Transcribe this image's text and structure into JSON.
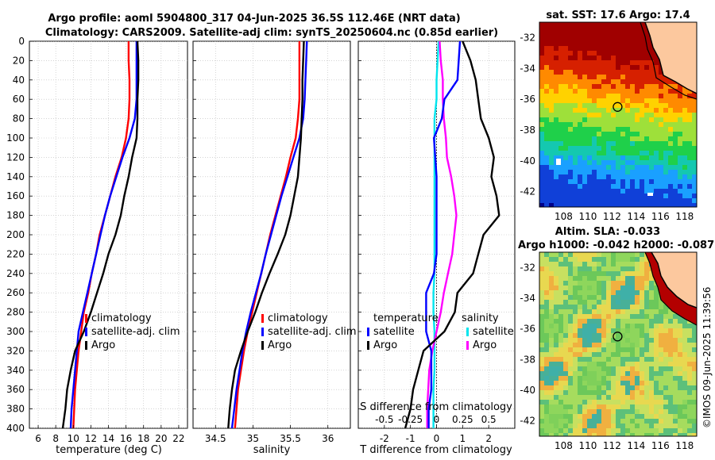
{
  "title": {
    "line1": "Argo profile: aoml 5904800_317 04-Jun-2025 36.5S 112.46E (NRT data)",
    "line2": "Climatology: CARS2009. Satellite-adj clim: synTS_20250604.nc (0.85d earlier)"
  },
  "watermark": "©IMOS 09-Jun-2025 11:39:56",
  "colors": {
    "climatology": "#ff0000",
    "satellite": "#0000ff",
    "argo": "#000000",
    "sal_satellite": "#00e5ee",
    "sal_argo": "#ff00ff",
    "land": "#fcc89e"
  },
  "chart_data": [
    {
      "type": "line",
      "id": "temperature",
      "xlabel": "temperature (deg C)",
      "ylabel": "",
      "xlim": [
        5,
        23
      ],
      "ylim": [
        400,
        0
      ],
      "xticks": [
        "6",
        "8",
        "10",
        "12",
        "14",
        "16",
        "18",
        "20",
        "22"
      ],
      "yticks": [
        "0",
        "20",
        "40",
        "60",
        "80",
        "100",
        "120",
        "140",
        "160",
        "180",
        "200",
        "220",
        "240",
        "260",
        "280",
        "300",
        "320",
        "340",
        "360",
        "380",
        "400"
      ],
      "legend": [
        "climatology",
        "satellite-adj. clim",
        "Argo"
      ],
      "series": [
        {
          "name": "climatology",
          "color": "#ff0000",
          "points": [
            [
              16.3,
              0
            ],
            [
              16.3,
              20
            ],
            [
              16.4,
              40
            ],
            [
              16.4,
              60
            ],
            [
              16.3,
              80
            ],
            [
              16.0,
              100
            ],
            [
              15.5,
              120
            ],
            [
              14.8,
              140
            ],
            [
              14.2,
              160
            ],
            [
              13.6,
              180
            ],
            [
              13.0,
              200
            ],
            [
              12.6,
              220
            ],
            [
              12.1,
              240
            ],
            [
              11.7,
              260
            ],
            [
              11.2,
              280
            ],
            [
              10.9,
              300
            ],
            [
              10.6,
              320
            ],
            [
              10.4,
              340
            ],
            [
              10.2,
              360
            ],
            [
              10.1,
              380
            ],
            [
              10.0,
              400
            ]
          ]
        },
        {
          "name": "satellite-adj. clim",
          "color": "#0000ff",
          "points": [
            [
              17.2,
              0
            ],
            [
              17.2,
              20
            ],
            [
              17.2,
              40
            ],
            [
              17.2,
              60
            ],
            [
              17.0,
              80
            ],
            [
              16.4,
              100
            ],
            [
              15.6,
              120
            ],
            [
              14.9,
              140
            ],
            [
              14.2,
              160
            ],
            [
              13.6,
              180
            ],
            [
              13.1,
              200
            ],
            [
              12.6,
              220
            ],
            [
              12.1,
              240
            ],
            [
              11.6,
              260
            ],
            [
              11.1,
              280
            ],
            [
              10.6,
              300
            ],
            [
              10.4,
              320
            ],
            [
              10.2,
              340
            ],
            [
              10.0,
              360
            ],
            [
              9.8,
              380
            ],
            [
              9.7,
              400
            ]
          ]
        },
        {
          "name": "Argo",
          "color": "#000000",
          "points": [
            [
              17.3,
              0
            ],
            [
              17.4,
              20
            ],
            [
              17.4,
              40
            ],
            [
              17.3,
              60
            ],
            [
              17.3,
              80
            ],
            [
              17.2,
              100
            ],
            [
              16.7,
              120
            ],
            [
              16.3,
              140
            ],
            [
              15.8,
              160
            ],
            [
              15.4,
              180
            ],
            [
              14.8,
              200
            ],
            [
              14.0,
              220
            ],
            [
              13.4,
              240
            ],
            [
              12.7,
              260
            ],
            [
              12.0,
              280
            ],
            [
              11.2,
              300
            ],
            [
              10.2,
              320
            ],
            [
              9.7,
              340
            ],
            [
              9.3,
              360
            ],
            [
              9.1,
              380
            ],
            [
              8.8,
              400
            ]
          ]
        }
      ]
    },
    {
      "type": "line",
      "id": "salinity",
      "xlabel": "salinity",
      "ylabel": "",
      "xlim": [
        34.2,
        36.3
      ],
      "ylim": [
        400,
        0
      ],
      "xticks": [
        "34.5",
        "35",
        "35.5",
        "36"
      ],
      "legend": [
        "climatology",
        "satellite-adj. clim",
        "Argo"
      ],
      "series": [
        {
          "name": "climatology",
          "color": "#ff0000",
          "points": [
            [
              35.62,
              0
            ],
            [
              35.62,
              20
            ],
            [
              35.62,
              40
            ],
            [
              35.62,
              60
            ],
            [
              35.6,
              80
            ],
            [
              35.57,
              100
            ],
            [
              35.5,
              120
            ],
            [
              35.44,
              140
            ],
            [
              35.37,
              160
            ],
            [
              35.3,
              180
            ],
            [
              35.23,
              200
            ],
            [
              35.17,
              220
            ],
            [
              35.11,
              240
            ],
            [
              35.05,
              260
            ],
            [
              34.99,
              280
            ],
            [
              34.93,
              300
            ],
            [
              34.88,
              320
            ],
            [
              34.84,
              340
            ],
            [
              34.8,
              360
            ],
            [
              34.78,
              380
            ],
            [
              34.76,
              400
            ]
          ]
        },
        {
          "name": "satellite-adj. clim",
          "color": "#0000ff",
          "points": [
            [
              35.72,
              0
            ],
            [
              35.71,
              20
            ],
            [
              35.7,
              40
            ],
            [
              35.69,
              60
            ],
            [
              35.67,
              80
            ],
            [
              35.62,
              100
            ],
            [
              35.54,
              120
            ],
            [
              35.46,
              140
            ],
            [
              35.38,
              160
            ],
            [
              35.31,
              180
            ],
            [
              35.24,
              200
            ],
            [
              35.17,
              220
            ],
            [
              35.11,
              240
            ],
            [
              35.04,
              260
            ],
            [
              34.97,
              280
            ],
            [
              34.91,
              300
            ],
            [
              34.86,
              320
            ],
            [
              34.82,
              340
            ],
            [
              34.78,
              360
            ],
            [
              34.75,
              380
            ],
            [
              34.72,
              400
            ]
          ]
        },
        {
          "name": "Argo",
          "color": "#000000",
          "points": [
            [
              35.68,
              0
            ],
            [
              35.67,
              20
            ],
            [
              35.66,
              40
            ],
            [
              35.66,
              60
            ],
            [
              35.65,
              80
            ],
            [
              35.64,
              100
            ],
            [
              35.62,
              120
            ],
            [
              35.6,
              140
            ],
            [
              35.55,
              160
            ],
            [
              35.5,
              180
            ],
            [
              35.43,
              200
            ],
            [
              35.33,
              220
            ],
            [
              35.22,
              240
            ],
            [
              35.12,
              260
            ],
            [
              35.03,
              280
            ],
            [
              34.93,
              300
            ],
            [
              34.84,
              320
            ],
            [
              34.76,
              340
            ],
            [
              34.72,
              360
            ],
            [
              34.69,
              380
            ],
            [
              34.67,
              400
            ]
          ]
        }
      ]
    },
    {
      "type": "line",
      "id": "difference",
      "xlabel": "T difference from climatology",
      "xlabel_top": "S difference from climatology",
      "xlim": [
        -3,
        3
      ],
      "xlim_salinity": [
        -0.75,
        0.75
      ],
      "ylim": [
        400,
        0
      ],
      "xticks": [
        "-2",
        "-1",
        "0",
        "1",
        "2"
      ],
      "xticks_salinity": [
        "-0.5",
        "-0.25",
        "0",
        "0.25",
        "0.5"
      ],
      "legend_temperature": {
        "title": "temperature",
        "items": [
          "satellite",
          "Argo"
        ]
      },
      "legend_salinity": {
        "title": "salinity",
        "items": [
          "satellite",
          "Argo"
        ]
      },
      "series": [
        {
          "name": "T satellite",
          "color": "#0000ff",
          "axis": "T",
          "points": [
            [
              0.9,
              0
            ],
            [
              0.85,
              20
            ],
            [
              0.8,
              40
            ],
            [
              0.3,
              60
            ],
            [
              0.2,
              80
            ],
            [
              -0.1,
              100
            ],
            [
              -0.05,
              120
            ],
            [
              0,
              140
            ],
            [
              0,
              160
            ],
            [
              0,
              180
            ],
            [
              0,
              200
            ],
            [
              0,
              220
            ],
            [
              -0.1,
              240
            ],
            [
              -0.4,
              260
            ],
            [
              -0.4,
              280
            ],
            [
              -0.4,
              300
            ],
            [
              -0.2,
              320
            ],
            [
              -0.2,
              340
            ],
            [
              -0.2,
              360
            ],
            [
              -0.3,
              380
            ],
            [
              -0.3,
              400
            ]
          ]
        },
        {
          "name": "T Argo",
          "color": "#000000",
          "axis": "T",
          "points": [
            [
              1.0,
              0
            ],
            [
              1.3,
              20
            ],
            [
              1.5,
              40
            ],
            [
              1.6,
              60
            ],
            [
              1.7,
              80
            ],
            [
              2.0,
              100
            ],
            [
              2.2,
              120
            ],
            [
              2.1,
              140
            ],
            [
              2.3,
              160
            ],
            [
              2.4,
              180
            ],
            [
              1.8,
              200
            ],
            [
              1.6,
              220
            ],
            [
              1.4,
              240
            ],
            [
              0.8,
              260
            ],
            [
              0.7,
              280
            ],
            [
              0.3,
              300
            ],
            [
              -0.5,
              320
            ],
            [
              -0.7,
              340
            ],
            [
              -0.9,
              360
            ],
            [
              -1.0,
              380
            ],
            [
              -1.2,
              400
            ]
          ]
        },
        {
          "name": "S satellite",
          "color": "#00e5ee",
          "axis": "S",
          "points": [
            [
              0.02,
              0
            ],
            [
              0.01,
              20
            ],
            [
              0.0,
              40
            ],
            [
              0.0,
              60
            ],
            [
              -0.02,
              80
            ],
            [
              -0.02,
              100
            ],
            [
              -0.02,
              120
            ],
            [
              -0.02,
              140
            ],
            [
              -0.02,
              160
            ],
            [
              -0.02,
              180
            ],
            [
              -0.02,
              200
            ],
            [
              -0.02,
              220
            ],
            [
              -0.02,
              240
            ],
            [
              -0.03,
              260
            ],
            [
              -0.03,
              280
            ],
            [
              -0.02,
              300
            ],
            [
              -0.02,
              320
            ],
            [
              -0.02,
              340
            ],
            [
              -0.03,
              360
            ],
            [
              -0.03,
              380
            ],
            [
              -0.03,
              400
            ]
          ]
        },
        {
          "name": "S Argo",
          "color": "#ff00ff",
          "axis": "S",
          "points": [
            [
              0.03,
              0
            ],
            [
              0.04,
              20
            ],
            [
              0.06,
              40
            ],
            [
              0.06,
              60
            ],
            [
              0.07,
              80
            ],
            [
              0.09,
              100
            ],
            [
              0.1,
              120
            ],
            [
              0.14,
              140
            ],
            [
              0.17,
              160
            ],
            [
              0.19,
              180
            ],
            [
              0.17,
              200
            ],
            [
              0.15,
              220
            ],
            [
              0.11,
              240
            ],
            [
              0.07,
              260
            ],
            [
              0.04,
              280
            ],
            [
              0.0,
              300
            ],
            [
              -0.04,
              320
            ],
            [
              -0.07,
              340
            ],
            [
              -0.08,
              360
            ],
            [
              -0.09,
              380
            ],
            [
              -0.09,
              400
            ]
          ]
        }
      ]
    },
    {
      "type": "heatmap",
      "id": "sst_map",
      "title": "sat. SST: 17.6 Argo: 17.4",
      "xlim": [
        106,
        119
      ],
      "ylim": [
        -43,
        -31
      ],
      "xticks": [
        "108",
        "110",
        "112",
        "114",
        "116",
        "118"
      ],
      "yticks": [
        "-32",
        "-34",
        "-36",
        "-38",
        "-40",
        "-42"
      ],
      "argo_position": [
        112.46,
        -36.5
      ]
    },
    {
      "type": "heatmap",
      "id": "sla_map",
      "title": "Altim. SLA: -0.033",
      "subtitle": "Argo h1000: -0.042 h2000: -0.087",
      "xlim": [
        106,
        119
      ],
      "ylim": [
        -43,
        -31
      ],
      "xticks": [
        "108",
        "110",
        "112",
        "114",
        "116",
        "118"
      ],
      "yticks": [
        "-32",
        "-34",
        "-36",
        "-38",
        "-40",
        "-42"
      ],
      "argo_position": [
        112.46,
        -36.5
      ]
    }
  ]
}
